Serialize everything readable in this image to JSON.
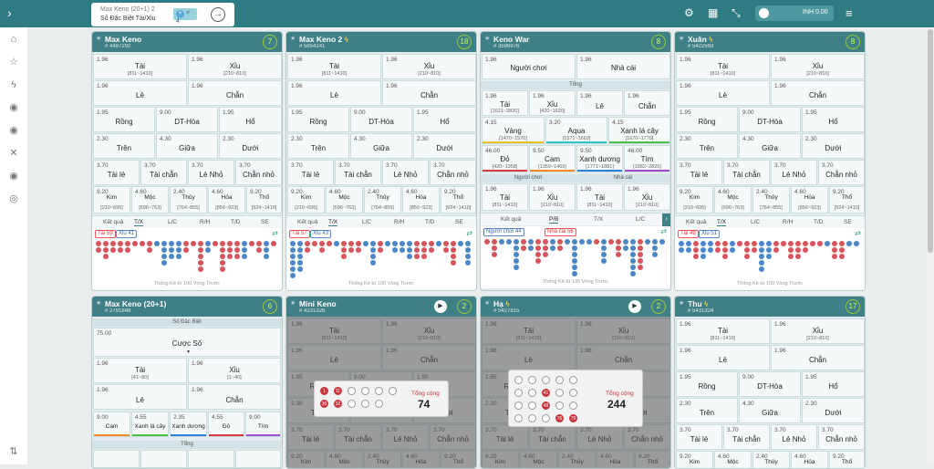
{
  "header": {
    "back_icon": "chevron-right-icon",
    "promo": {
      "line1": "Max Keno (20+1) 2",
      "line2": "Số Đặc Biệt Tài/Xỉu",
      "multiplier": "× 4"
    },
    "balance": "INH 0.00"
  },
  "panels": {
    "maxkeno": {
      "name": "Max Keno",
      "id": "# 4487292",
      "count": "7"
    },
    "maxkeno2": {
      "name": "Max Keno 2",
      "id": "# 5854141",
      "count": "18"
    },
    "kenowar": {
      "name": "Keno War",
      "id": "# 3596976",
      "count": "8"
    },
    "xuan": {
      "name": "Xuân",
      "id": "# 5422593",
      "count": "8"
    },
    "maxkeno20": {
      "name": "Max Keno (20+1)",
      "id": "# 2791848",
      "count": "6"
    },
    "minikeno": {
      "name": "Mini Keno",
      "id": "# 4231326",
      "count": "2",
      "total_label": "Tổng cộng",
      "total": "74",
      "nums": [
        "1",
        "11",
        "",
        "",
        "",
        "",
        "30",
        "32",
        "",
        "",
        ""
      ]
    },
    "ha": {
      "name": "Hạ",
      "id": "# 5427815",
      "count": "2",
      "total_label": "Tổng cộng",
      "total": "244",
      "nums": [
        "",
        "",
        "",
        "",
        "",
        "",
        "",
        "41",
        "",
        "",
        "",
        "",
        "48",
        "",
        "",
        "",
        "",
        "",
        "76",
        "79"
      ]
    },
    "thu": {
      "name": "Thu",
      "id": "# 5431324",
      "count": "17"
    }
  },
  "bets": {
    "tai": {
      "odds": "1.96",
      "label": "Tài",
      "range": "[811~1410]"
    },
    "xiu": {
      "odds": "1.96",
      "label": "Xỉu",
      "range": "[210~810]"
    },
    "le": {
      "odds": "1.96",
      "label": "Lẻ"
    },
    "chan": {
      "odds": "1.96",
      "label": "Chẵn"
    },
    "rong": {
      "odds": "1.95",
      "label": "Rồng"
    },
    "dthoa": {
      "odds": "9.00",
      "label": "DT-Hòa"
    },
    "ho": {
      "odds": "1.95",
      "label": "Hổ"
    },
    "tren": {
      "odds": "2.30",
      "label": "Trên"
    },
    "giua": {
      "odds": "4.30",
      "label": "Giữa"
    },
    "duoi": {
      "odds": "2.30",
      "label": "Dưới"
    },
    "taile": {
      "odds": "3.70",
      "label": "Tài lẻ"
    },
    "taichan": {
      "odds": "3.70",
      "label": "Tài chẵn"
    },
    "lenho": {
      "odds": "3.70",
      "label": "Lẻ Nhỏ"
    },
    "channho": {
      "odds": "3.70",
      "label": "Chẵn nhỏ"
    },
    "kim": {
      "odds": "9.20",
      "label": "Kim",
      "range": "[210~695]"
    },
    "moc": {
      "odds": "4.60",
      "label": "Mộc",
      "range": "[696~763]"
    },
    "thuy": {
      "odds": "2.40",
      "label": "Thủy",
      "range": "[764~855]"
    },
    "hoa": {
      "odds": "4.60",
      "label": "Hỏa",
      "range": "[856~923]"
    },
    "tho": {
      "odds": "9.20",
      "label": "Thổ",
      "range": "[924~1410]"
    }
  },
  "war": {
    "nguoichoi": {
      "odds": "1.96",
      "label": "Người chơi"
    },
    "nhacai": {
      "odds": "1.96",
      "label": "Nhà cái"
    },
    "tong": "Tổng",
    "tai": {
      "odds": "1.96",
      "label": "Tài",
      "range": "[1621~2820]"
    },
    "xiu": {
      "odds": "1.96",
      "label": "Xỉu",
      "range": "[420~1620]"
    },
    "le": {
      "odds": "1.96",
      "label": "Lẻ"
    },
    "chan": {
      "odds": "1.96",
      "label": "Chẵn"
    },
    "vang": {
      "odds": "4.15",
      "label": "Vàng",
      "range": "[1470~1570]"
    },
    "aqua": {
      "odds": "3.20",
      "label": "Aqua",
      "range": "[1571~1669]"
    },
    "xanhla": {
      "odds": "4.15",
      "label": "Xanh lá cây",
      "range": "[1670~1770]"
    },
    "do": {
      "odds": "46.00",
      "label": "Đỏ",
      "range": "[420~1358]"
    },
    "cam": {
      "odds": "9.50",
      "label": "Cam",
      "range": "[1359~1469]"
    },
    "xanhduong": {
      "odds": "9.50",
      "label": "Xanh dương",
      "range": "[1771~1881]"
    },
    "tim": {
      "odds": "46.00",
      "label": "Tím",
      "range": "[1882~2820]"
    },
    "pl": "Người chơi",
    "dl": "Nhà cái",
    "pltai": {
      "odds": "1.96",
      "label": "Tài",
      "range": "[811~1410]"
    },
    "plxiu": {
      "odds": "1.96",
      "label": "Xỉu",
      "range": "[210~810]"
    },
    "dltai": {
      "odds": "1.96",
      "label": "Tài",
      "range": "[811~1410]"
    },
    "dlxiu": {
      "odds": "1.96",
      "label": "Xỉu",
      "range": "[210~810]"
    }
  },
  "special": {
    "title": "Số Đặc Biệt",
    "cuoc": {
      "odds": "75.00",
      "label": "Cược Số"
    },
    "tai": {
      "odds": "1.96",
      "label": "Tài",
      "range": "[41~80]"
    },
    "xiu": {
      "odds": "1.96",
      "label": "Xỉu",
      "range": "[1~40]"
    },
    "cam": {
      "odds": "9.00",
      "label": "Cam"
    },
    "xanhla": {
      "odds": "4.55",
      "label": "Xanh lá cây"
    },
    "xanhduong": {
      "odds": "2.35",
      "label": "Xanh dương"
    },
    "do": {
      "odds": "4.55",
      "label": "Đỏ"
    },
    "tim": {
      "odds": "9.00",
      "label": "Tím"
    },
    "tong": "Tổng"
  },
  "tabs": [
    "Kết quả",
    "T/X",
    "L/C",
    "R/H",
    "T/D",
    "SE"
  ],
  "war_tabs": [
    "Kết quả",
    "P/B",
    "T/X",
    "L/C"
  ],
  "stats": {
    "tai": "Tài 59",
    "xiu": "Xỉu 41",
    "tai2": "Tài 57",
    "xiu2": "Xỉu 43",
    "p": "Người chơi 44",
    "d": "Nhà cái 56",
    "tai3": "Tài 49",
    "xiu3": "Xỉu 51"
  },
  "stats_footer": "Thống Kê từ 100 Vòng Trước",
  "colors": {
    "header": "#3f7f86",
    "topbar": "#2f7b83",
    "red": "#d9535a",
    "blue": "#4a86c8"
  }
}
